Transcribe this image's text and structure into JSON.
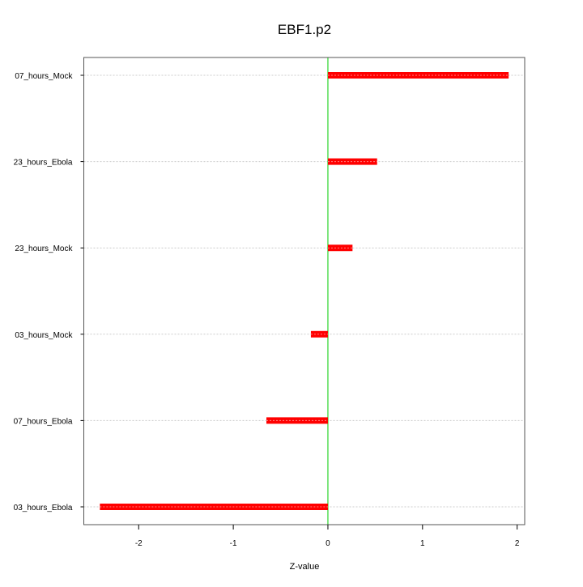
{
  "chart_data": {
    "type": "bar",
    "orientation": "horizontal",
    "title": "EBF1.p2",
    "xlabel": "Z-value",
    "ylabel": "",
    "categories": [
      "07_hours_Mock",
      "23_hours_Ebola",
      "23_hours_Mock",
      "03_hours_Mock",
      "07_hours_Ebola",
      "03_hours_Ebola"
    ],
    "values": [
      1.91,
      0.52,
      0.26,
      -0.18,
      -0.65,
      -2.41
    ],
    "xlim": [
      -2.58,
      2.08
    ],
    "xticks": [
      -2,
      -1,
      0,
      1,
      2
    ],
    "grid": "horizontal dotted",
    "colors": {
      "bar": "#ff0000",
      "zero_line": "#00cc00",
      "grid": "#cccccc",
      "axis": "#555555"
    }
  }
}
